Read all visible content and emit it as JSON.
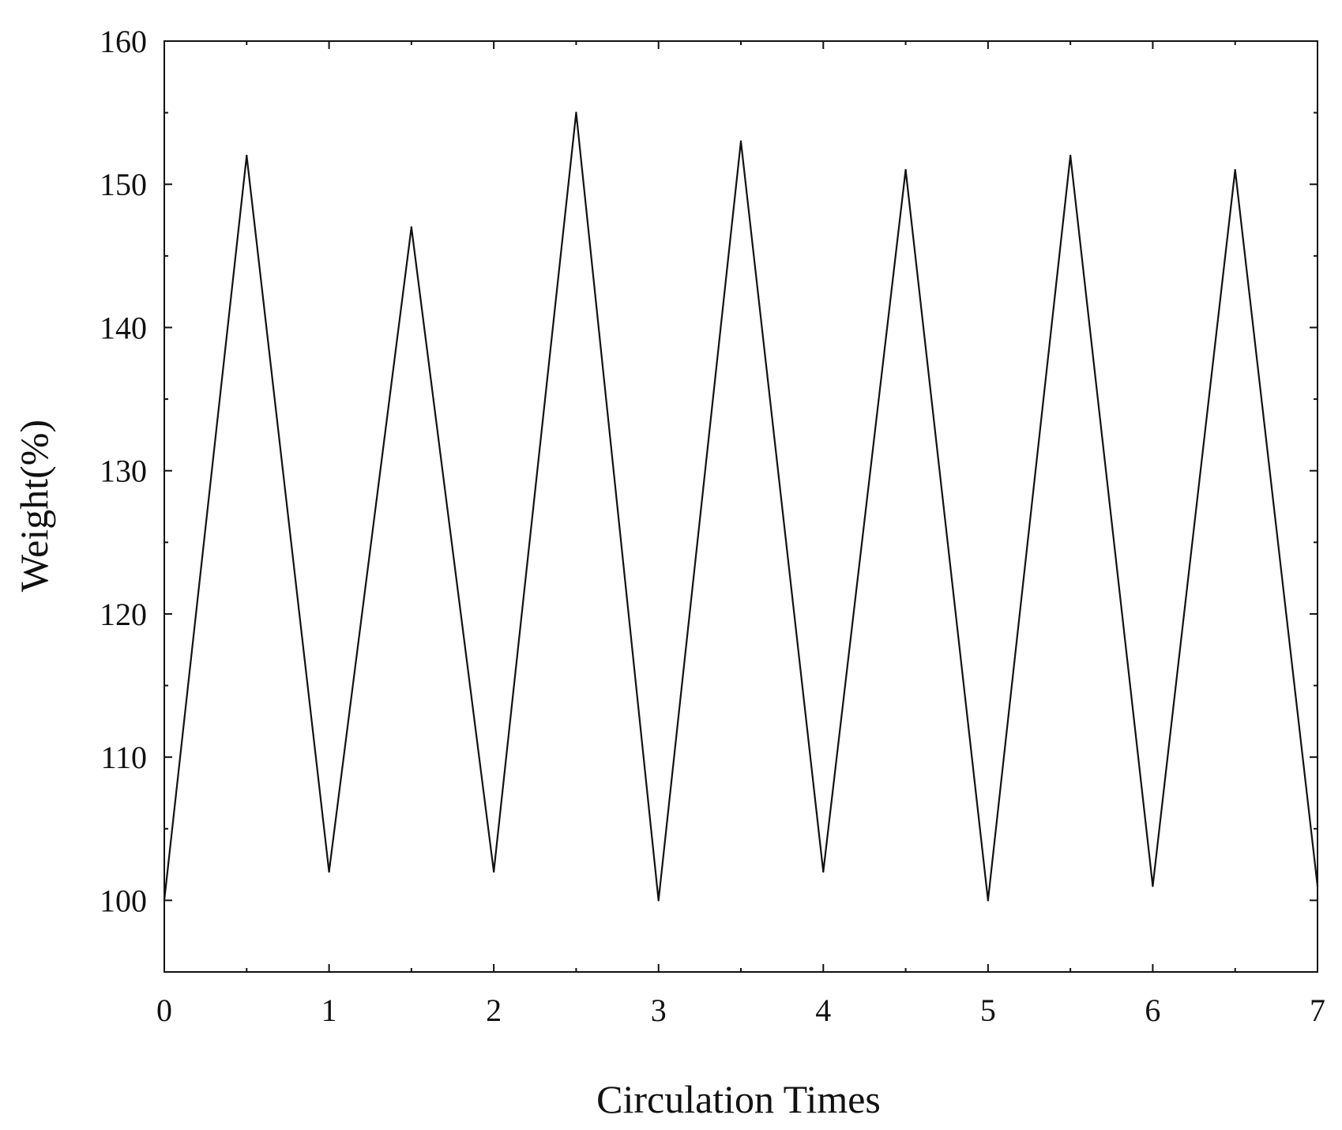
{
  "chart_data": {
    "type": "line",
    "title": "",
    "xlabel": "Circulation Times",
    "ylabel": "Weight(%)",
    "xlim": [
      0,
      7
    ],
    "ylim": [
      95,
      160
    ],
    "x_ticks": [
      0,
      1,
      2,
      3,
      4,
      5,
      6,
      7
    ],
    "y_ticks": [
      100,
      110,
      120,
      130,
      140,
      150,
      160
    ],
    "grid": false,
    "legend": "none",
    "line_color": "#111111",
    "series": [
      {
        "x": [
          0,
          0.5,
          1,
          1.5,
          2,
          2.5,
          3,
          3.5,
          4,
          4.5,
          5,
          5.5,
          6,
          6.5,
          7
        ],
        "y": [
          100,
          152,
          102,
          147,
          102,
          155,
          100,
          153,
          102,
          151,
          100,
          152,
          101,
          151,
          101
        ]
      }
    ]
  }
}
